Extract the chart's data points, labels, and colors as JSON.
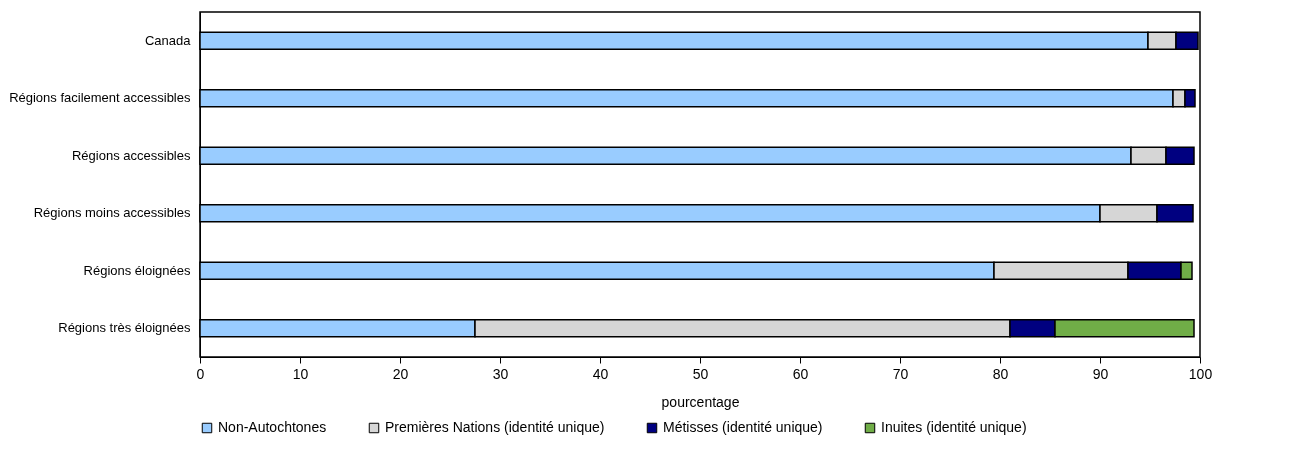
{
  "chart_data": {
    "type": "bar",
    "orientation": "horizontal",
    "stacked": true,
    "xlabel": "pourcentage",
    "categories": [
      "Canada",
      "Régions facilement accessibles",
      "Régions accessibles",
      "Régions moins accessibles",
      "Régions éloignées",
      "Régions très éloignées"
    ],
    "series": [
      {
        "name": "Non-Autochtones",
        "color": "#99ccff",
        "values": [
          94.8,
          97.3,
          93.1,
          90.0,
          79.4,
          27.5
        ]
      },
      {
        "name": "Premières Nations (identité unique)",
        "color": "#d6d6d6",
        "values": [
          2.8,
          1.2,
          3.5,
          5.7,
          13.4,
          53.5
        ]
      },
      {
        "name": "Métisses (identité unique)",
        "color": "#000080",
        "values": [
          2.2,
          1.0,
          2.8,
          3.6,
          5.3,
          4.5
        ]
      },
      {
        "name": "Inuites (identité unique)",
        "color": "#70ad47",
        "values": [
          null,
          null,
          null,
          null,
          1.1,
          13.9
        ]
      }
    ],
    "xlim": [
      0,
      100
    ],
    "xticks": [
      0,
      10,
      20,
      30,
      40,
      50,
      60,
      70,
      80,
      90,
      100
    ],
    "grid": false,
    "legend": "bottom"
  }
}
